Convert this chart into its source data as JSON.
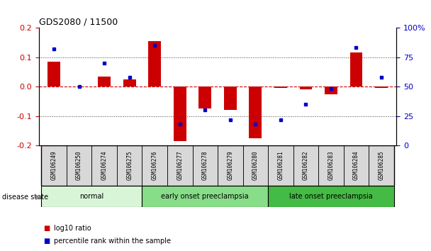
{
  "title": "GDS2080 / 11500",
  "samples": [
    "GSM106249",
    "GSM106250",
    "GSM106274",
    "GSM106275",
    "GSM106276",
    "GSM106277",
    "GSM106278",
    "GSM106279",
    "GSM106280",
    "GSM106281",
    "GSM106282",
    "GSM106283",
    "GSM106284",
    "GSM106285"
  ],
  "log10_ratio": [
    0.085,
    0.0,
    0.035,
    0.025,
    0.155,
    -0.185,
    -0.075,
    -0.08,
    -0.175,
    -0.005,
    -0.01,
    -0.025,
    0.115,
    -0.005
  ],
  "percentile_rank": [
    82,
    50,
    70,
    58,
    85,
    18,
    30,
    22,
    18,
    22,
    35,
    48,
    83,
    58
  ],
  "groups": [
    {
      "label": "normal",
      "start": 0,
      "end": 4,
      "color": "#d8f5d8"
    },
    {
      "label": "early onset preeclampsia",
      "start": 4,
      "end": 9,
      "color": "#88dd88"
    },
    {
      "label": "late onset preeclampsia",
      "start": 9,
      "end": 14,
      "color": "#44bb44"
    }
  ],
  "ylim_left": [
    -0.2,
    0.2
  ],
  "ylim_right": [
    0,
    100
  ],
  "left_ticks": [
    -0.2,
    -0.1,
    0.0,
    0.1,
    0.2
  ],
  "right_ticks": [
    0,
    25,
    50,
    75,
    100
  ],
  "right_tick_labels": [
    "0",
    "25",
    "50",
    "75",
    "100%"
  ],
  "bar_color": "#cc0000",
  "dot_color": "#0000cc",
  "zero_line_color": "#cc0000",
  "grid_color": "#444444",
  "title_color": "#000000",
  "left_tick_color": "#cc0000",
  "right_tick_color": "#0000cc",
  "bar_width": 0.5,
  "legend_items": [
    {
      "label": "log10 ratio",
      "color": "#cc0000"
    },
    {
      "label": "percentile rank within the sample",
      "color": "#0000cc"
    }
  ]
}
